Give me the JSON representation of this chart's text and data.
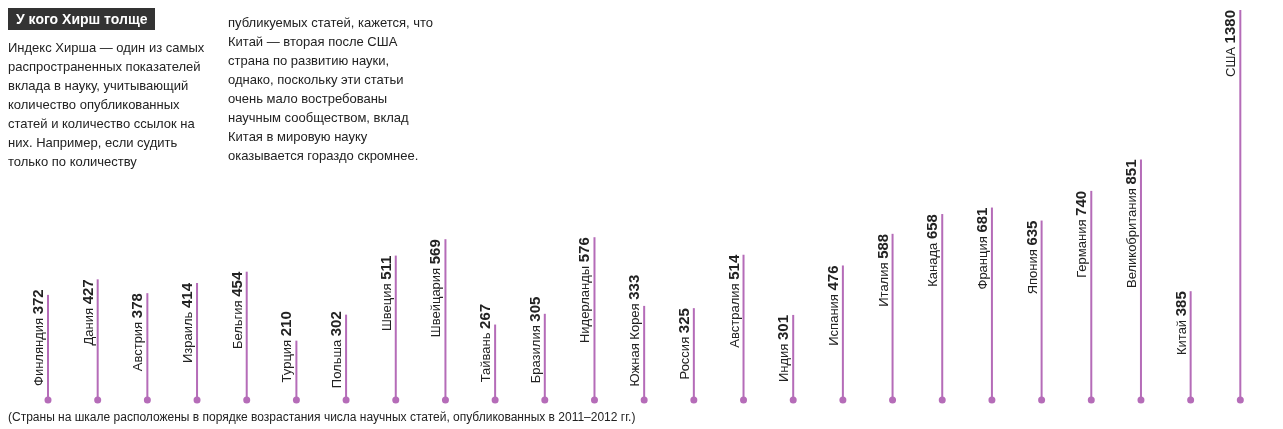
{
  "chart_data": {
    "type": "bar",
    "title": "У кого Хирш толще",
    "annotations": [
      "Индекс Хирша — один из самых распространенных показателей вклада в науку, учитывающий количество опубликованных статей и количество ссылок на них. Например, если судить только по количеству",
      "публикуемых статей, кажется, что Китай — вторая после США страна по развитию науки, однако, поскольку эти статьи очень мало востребованы научным сообществом, вклад Китая в мировую науку оказывается гораздо скромнее.",
      "(Страны на шкале расположены в порядке возрастания числа научных статей, опубликованных в 2011–2012 гг.)"
    ],
    "categories": [
      "Финляндия",
      "Дания",
      "Австрия",
      "Израиль",
      "Бельгия",
      "Турция",
      "Польша",
      "Швеция",
      "Швейцария",
      "Тайвань",
      "Бразилия",
      "Нидерланды",
      "Южная Корея",
      "Россия",
      "Австралия",
      "Индия",
      "Испания",
      "Италия",
      "Канада",
      "Франция",
      "Япония",
      "Германия",
      "Великобритания",
      "Китай",
      "США"
    ],
    "values": [
      372,
      427,
      378,
      414,
      454,
      210,
      302,
      511,
      569,
      267,
      305,
      576,
      333,
      325,
      514,
      301,
      476,
      588,
      658,
      681,
      635,
      740,
      851,
      385,
      1380
    ],
    "color": "#b56cb8",
    "data_labels": true,
    "grid": false,
    "legend": false
  }
}
